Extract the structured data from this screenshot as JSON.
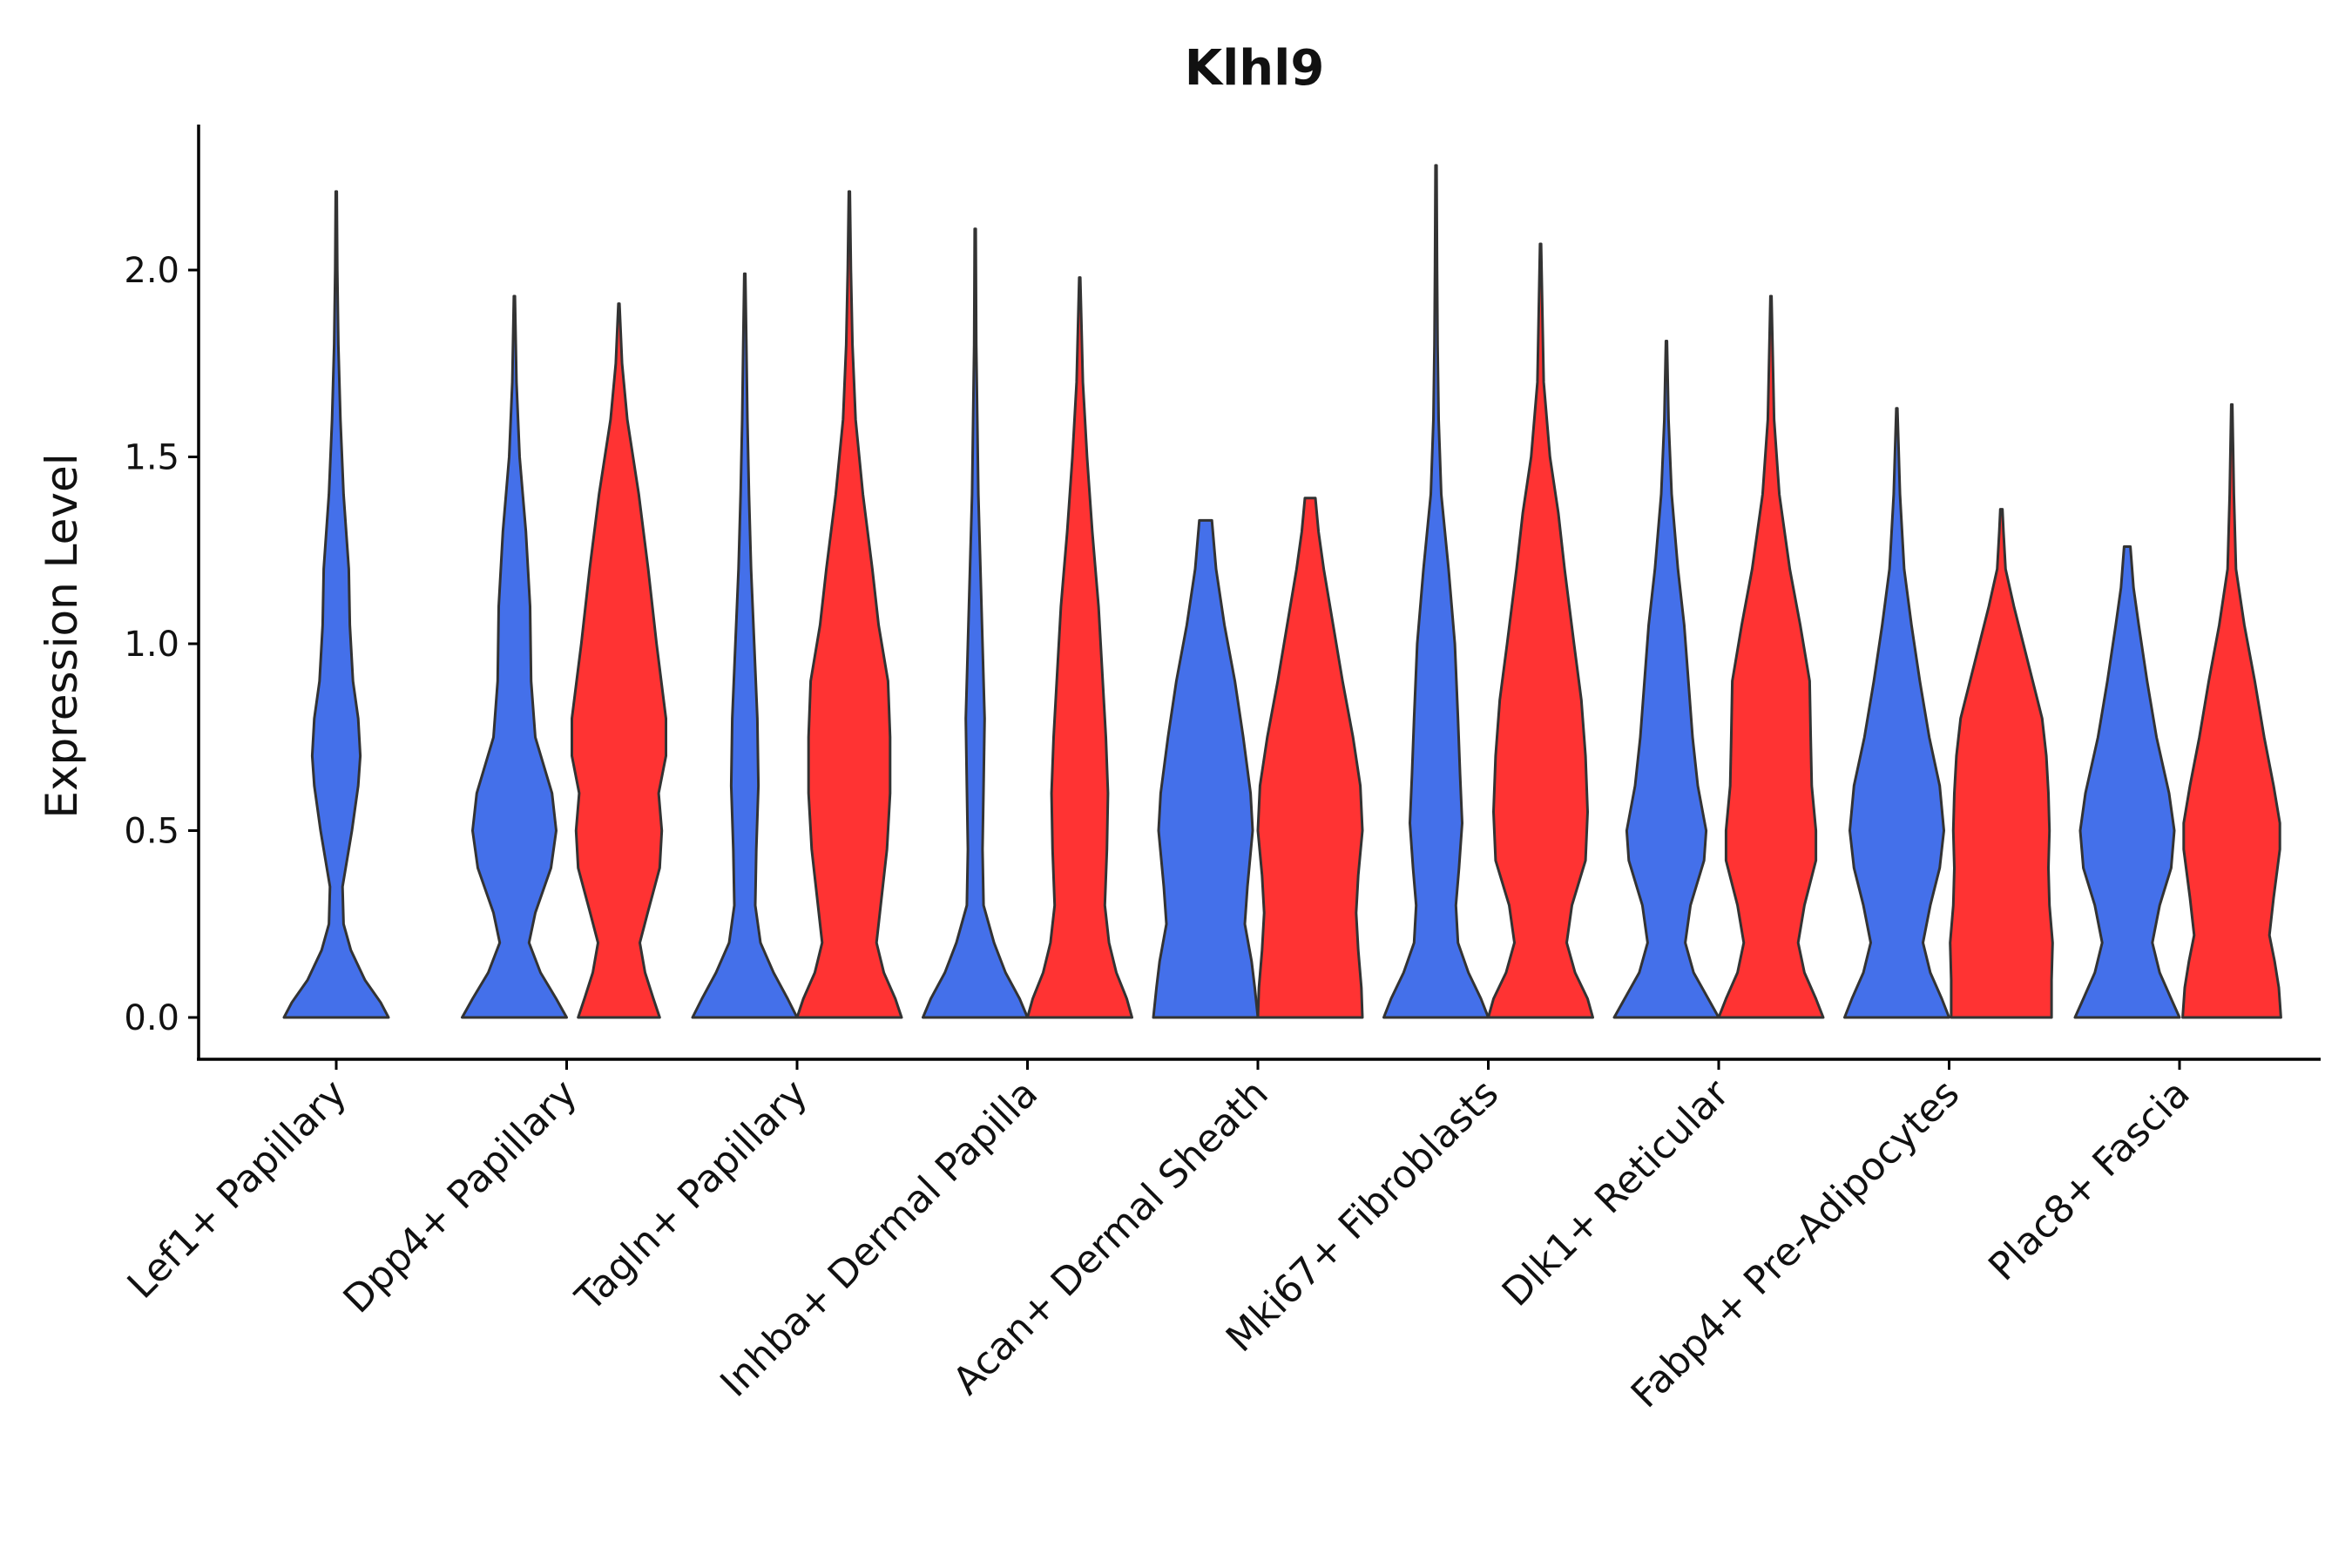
{
  "chart_data": {
    "type": "violin",
    "title": "Klhl9",
    "xlabel": "",
    "ylabel": "Expression Level",
    "ylim": [
      -0.12,
      2.4
    ],
    "yticks": [
      {
        "value": 0.0,
        "label": "0.0"
      },
      {
        "value": 0.5,
        "label": "0.5"
      },
      {
        "value": 1.0,
        "label": "1.0"
      },
      {
        "value": 1.5,
        "label": "1.5"
      },
      {
        "value": 2.0,
        "label": "2.0"
      }
    ],
    "grid": false,
    "legend": "none",
    "colors": {
      "group1": "#4470EA",
      "group2": "#FF3333",
      "outline": "#333333",
      "axis": "#000000"
    },
    "categories": [
      "Lef1+ Papillary",
      "Dpp4+ Papillary",
      "Tagln+ Papillary",
      "Inhba+ Dermal Papilla",
      "Acan+ Dermal Sheath",
      "Mki67+ Fibroblasts",
      "Dlk1+ Reticular",
      "Fabp4+ Pre-Adipocytes",
      "Plac8+ Fascia"
    ],
    "violins": [
      {
        "category": "Lef1+ Papillary",
        "group": "group1",
        "max": 2.21,
        "profile": [
          [
            0,
            1.0
          ],
          [
            0.04,
            0.85
          ],
          [
            0.1,
            0.55
          ],
          [
            0.18,
            0.28
          ],
          [
            0.25,
            0.14
          ],
          [
            0.35,
            0.12
          ],
          [
            0.5,
            0.3
          ],
          [
            0.62,
            0.42
          ],
          [
            0.7,
            0.46
          ],
          [
            0.8,
            0.42
          ],
          [
            0.9,
            0.32
          ],
          [
            1.05,
            0.26
          ],
          [
            1.2,
            0.24
          ],
          [
            1.4,
            0.14
          ],
          [
            1.6,
            0.08
          ],
          [
            1.8,
            0.04
          ],
          [
            2.0,
            0.02
          ],
          [
            2.21,
            0.01
          ]
        ]
      },
      {
        "category": "Dpp4+ Papillary",
        "group": "group1",
        "max": 1.93,
        "profile": [
          [
            0,
            1.0
          ],
          [
            0.05,
            0.8
          ],
          [
            0.12,
            0.5
          ],
          [
            0.2,
            0.28
          ],
          [
            0.28,
            0.4
          ],
          [
            0.4,
            0.7
          ],
          [
            0.5,
            0.8
          ],
          [
            0.6,
            0.72
          ],
          [
            0.75,
            0.4
          ],
          [
            0.9,
            0.32
          ],
          [
            1.1,
            0.3
          ],
          [
            1.3,
            0.22
          ],
          [
            1.5,
            0.1
          ],
          [
            1.7,
            0.04
          ],
          [
            1.93,
            0.01
          ]
        ]
      },
      {
        "category": "Dpp4+ Papillary",
        "group": "group2",
        "max": 1.91,
        "profile": [
          [
            0,
            0.78
          ],
          [
            0.05,
            0.66
          ],
          [
            0.12,
            0.5
          ],
          [
            0.2,
            0.4
          ],
          [
            0.28,
            0.55
          ],
          [
            0.4,
            0.78
          ],
          [
            0.5,
            0.82
          ],
          [
            0.6,
            0.76
          ],
          [
            0.7,
            0.9
          ],
          [
            0.8,
            0.9
          ],
          [
            1.0,
            0.72
          ],
          [
            1.2,
            0.56
          ],
          [
            1.4,
            0.38
          ],
          [
            1.6,
            0.16
          ],
          [
            1.75,
            0.06
          ],
          [
            1.91,
            0.01
          ]
        ]
      },
      {
        "category": "Tagln+ Papillary",
        "group": "group1",
        "max": 1.99,
        "profile": [
          [
            0,
            1.0
          ],
          [
            0.05,
            0.82
          ],
          [
            0.12,
            0.55
          ],
          [
            0.2,
            0.3
          ],
          [
            0.3,
            0.2
          ],
          [
            0.45,
            0.22
          ],
          [
            0.62,
            0.26
          ],
          [
            0.8,
            0.24
          ],
          [
            1.0,
            0.18
          ],
          [
            1.2,
            0.12
          ],
          [
            1.4,
            0.08
          ],
          [
            1.6,
            0.05
          ],
          [
            1.8,
            0.03
          ],
          [
            1.99,
            0.01
          ]
        ]
      },
      {
        "category": "Tagln+ Papillary",
        "group": "group2",
        "max": 2.21,
        "profile": [
          [
            0,
            1.0
          ],
          [
            0.05,
            0.88
          ],
          [
            0.12,
            0.66
          ],
          [
            0.2,
            0.52
          ],
          [
            0.3,
            0.6
          ],
          [
            0.45,
            0.72
          ],
          [
            0.6,
            0.78
          ],
          [
            0.75,
            0.78
          ],
          [
            0.9,
            0.74
          ],
          [
            1.05,
            0.56
          ],
          [
            1.2,
            0.44
          ],
          [
            1.4,
            0.26
          ],
          [
            1.6,
            0.12
          ],
          [
            1.8,
            0.06
          ],
          [
            2.0,
            0.03
          ],
          [
            2.21,
            0.01
          ]
        ]
      },
      {
        "category": "Inhba+ Dermal Papilla",
        "group": "group1",
        "max": 2.11,
        "profile": [
          [
            0,
            1.0
          ],
          [
            0.05,
            0.85
          ],
          [
            0.12,
            0.58
          ],
          [
            0.2,
            0.36
          ],
          [
            0.3,
            0.16
          ],
          [
            0.45,
            0.14
          ],
          [
            0.62,
            0.16
          ],
          [
            0.8,
            0.18
          ],
          [
            1.0,
            0.14
          ],
          [
            1.2,
            0.1
          ],
          [
            1.4,
            0.06
          ],
          [
            1.6,
            0.04
          ],
          [
            1.8,
            0.02
          ],
          [
            2.11,
            0.01
          ]
        ]
      },
      {
        "category": "Inhba+ Dermal Papilla",
        "group": "group2",
        "max": 1.98,
        "profile": [
          [
            0,
            1.0
          ],
          [
            0.05,
            0.9
          ],
          [
            0.12,
            0.7
          ],
          [
            0.2,
            0.56
          ],
          [
            0.3,
            0.48
          ],
          [
            0.45,
            0.52
          ],
          [
            0.6,
            0.54
          ],
          [
            0.75,
            0.5
          ],
          [
            0.9,
            0.44
          ],
          [
            1.1,
            0.36
          ],
          [
            1.3,
            0.24
          ],
          [
            1.5,
            0.14
          ],
          [
            1.7,
            0.06
          ],
          [
            1.98,
            0.01
          ]
        ]
      },
      {
        "category": "Acan+ Dermal Sheath",
        "group": "group1",
        "max": 1.33,
        "profile": [
          [
            0,
            1.0
          ],
          [
            0.08,
            0.94
          ],
          [
            0.15,
            0.88
          ],
          [
            0.25,
            0.75
          ],
          [
            0.35,
            0.8
          ],
          [
            0.5,
            0.9
          ],
          [
            0.6,
            0.86
          ],
          [
            0.75,
            0.72
          ],
          [
            0.9,
            0.56
          ],
          [
            1.05,
            0.36
          ],
          [
            1.2,
            0.2
          ],
          [
            1.33,
            0.12
          ]
        ]
      },
      {
        "category": "Acan+ Dermal Sheath",
        "group": "group2",
        "max": 1.39,
        "profile": [
          [
            0,
            1.0
          ],
          [
            0.08,
            0.98
          ],
          [
            0.18,
            0.92
          ],
          [
            0.28,
            0.88
          ],
          [
            0.38,
            0.92
          ],
          [
            0.5,
            1.0
          ],
          [
            0.62,
            0.96
          ],
          [
            0.75,
            0.82
          ],
          [
            0.9,
            0.62
          ],
          [
            1.05,
            0.44
          ],
          [
            1.2,
            0.26
          ],
          [
            1.3,
            0.16
          ],
          [
            1.39,
            0.1
          ]
        ]
      },
      {
        "category": "Mki67+ Fibroblasts",
        "group": "group1",
        "max": 2.28,
        "profile": [
          [
            0,
            1.0
          ],
          [
            0.05,
            0.86
          ],
          [
            0.12,
            0.62
          ],
          [
            0.2,
            0.42
          ],
          [
            0.3,
            0.38
          ],
          [
            0.4,
            0.44
          ],
          [
            0.52,
            0.5
          ],
          [
            0.65,
            0.46
          ],
          [
            0.8,
            0.42
          ],
          [
            1.0,
            0.36
          ],
          [
            1.2,
            0.24
          ],
          [
            1.4,
            0.1
          ],
          [
            1.6,
            0.05
          ],
          [
            1.8,
            0.03
          ],
          [
            2.0,
            0.02
          ],
          [
            2.28,
            0.01
          ]
        ]
      },
      {
        "category": "Mki67+ Fibroblasts",
        "group": "group2",
        "max": 2.07,
        "profile": [
          [
            0,
            1.0
          ],
          [
            0.05,
            0.9
          ],
          [
            0.12,
            0.66
          ],
          [
            0.2,
            0.5
          ],
          [
            0.3,
            0.6
          ],
          [
            0.42,
            0.86
          ],
          [
            0.55,
            0.9
          ],
          [
            0.7,
            0.86
          ],
          [
            0.85,
            0.78
          ],
          [
            1.0,
            0.64
          ],
          [
            1.2,
            0.46
          ],
          [
            1.35,
            0.34
          ],
          [
            1.5,
            0.18
          ],
          [
            1.7,
            0.06
          ],
          [
            2.07,
            0.01
          ]
        ]
      },
      {
        "category": "Dlk1+ Reticular",
        "group": "group1",
        "max": 1.81,
        "profile": [
          [
            0,
            1.0
          ],
          [
            0.05,
            0.8
          ],
          [
            0.12,
            0.52
          ],
          [
            0.2,
            0.36
          ],
          [
            0.3,
            0.46
          ],
          [
            0.42,
            0.72
          ],
          [
            0.5,
            0.76
          ],
          [
            0.62,
            0.6
          ],
          [
            0.75,
            0.5
          ],
          [
            0.9,
            0.42
          ],
          [
            1.05,
            0.34
          ],
          [
            1.2,
            0.22
          ],
          [
            1.4,
            0.1
          ],
          [
            1.6,
            0.04
          ],
          [
            1.81,
            0.01
          ]
        ]
      },
      {
        "category": "Dlk1+ Reticular",
        "group": "group2",
        "max": 1.93,
        "profile": [
          [
            0,
            1.0
          ],
          [
            0.05,
            0.86
          ],
          [
            0.12,
            0.64
          ],
          [
            0.2,
            0.52
          ],
          [
            0.3,
            0.64
          ],
          [
            0.42,
            0.86
          ],
          [
            0.5,
            0.86
          ],
          [
            0.62,
            0.78
          ],
          [
            0.75,
            0.76
          ],
          [
            0.9,
            0.74
          ],
          [
            1.05,
            0.56
          ],
          [
            1.2,
            0.36
          ],
          [
            1.4,
            0.16
          ],
          [
            1.6,
            0.06
          ],
          [
            1.93,
            0.01
          ]
        ]
      },
      {
        "category": "Fabp4+ Pre-Adipocytes",
        "group": "group1",
        "max": 1.63,
        "profile": [
          [
            0,
            1.0
          ],
          [
            0.05,
            0.86
          ],
          [
            0.12,
            0.64
          ],
          [
            0.2,
            0.5
          ],
          [
            0.3,
            0.64
          ],
          [
            0.4,
            0.82
          ],
          [
            0.5,
            0.9
          ],
          [
            0.62,
            0.82
          ],
          [
            0.75,
            0.62
          ],
          [
            0.9,
            0.44
          ],
          [
            1.05,
            0.28
          ],
          [
            1.2,
            0.14
          ],
          [
            1.4,
            0.06
          ],
          [
            1.63,
            0.01
          ]
        ]
      },
      {
        "category": "Fabp4+ Pre-Adipocytes",
        "group": "group2",
        "max": 1.36,
        "profile": [
          [
            0,
            0.96
          ],
          [
            0.1,
            0.96
          ],
          [
            0.2,
            0.98
          ],
          [
            0.3,
            0.92
          ],
          [
            0.4,
            0.9
          ],
          [
            0.5,
            0.92
          ],
          [
            0.6,
            0.9
          ],
          [
            0.7,
            0.86
          ],
          [
            0.8,
            0.78
          ],
          [
            0.9,
            0.6
          ],
          [
            1.0,
            0.42
          ],
          [
            1.1,
            0.24
          ],
          [
            1.2,
            0.08
          ],
          [
            1.3,
            0.04
          ],
          [
            1.36,
            0.02
          ]
        ]
      },
      {
        "category": "Plac8+ Fascia",
        "group": "group1",
        "max": 1.26,
        "profile": [
          [
            0,
            1.0
          ],
          [
            0.05,
            0.84
          ],
          [
            0.12,
            0.62
          ],
          [
            0.2,
            0.48
          ],
          [
            0.3,
            0.62
          ],
          [
            0.4,
            0.84
          ],
          [
            0.5,
            0.9
          ],
          [
            0.6,
            0.8
          ],
          [
            0.75,
            0.56
          ],
          [
            0.9,
            0.38
          ],
          [
            1.05,
            0.22
          ],
          [
            1.15,
            0.12
          ],
          [
            1.26,
            0.06
          ]
        ]
      },
      {
        "category": "Plac8+ Fascia",
        "group": "group2",
        "max": 1.64,
        "profile": [
          [
            0,
            0.94
          ],
          [
            0.08,
            0.9
          ],
          [
            0.15,
            0.82
          ],
          [
            0.22,
            0.72
          ],
          [
            0.32,
            0.8
          ],
          [
            0.45,
            0.92
          ],
          [
            0.52,
            0.92
          ],
          [
            0.62,
            0.8
          ],
          [
            0.75,
            0.62
          ],
          [
            0.9,
            0.44
          ],
          [
            1.05,
            0.24
          ],
          [
            1.2,
            0.08
          ],
          [
            1.4,
            0.04
          ],
          [
            1.64,
            0.01
          ]
        ]
      }
    ]
  }
}
